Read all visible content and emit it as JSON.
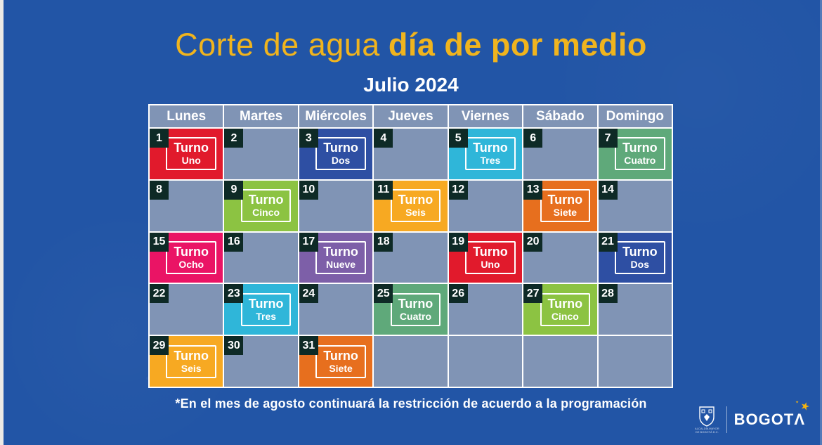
{
  "title": {
    "regular": "Corte de agua",
    "bold": "día de por medio"
  },
  "month": "Julio 2024",
  "calendar": {
    "weekdays": [
      "Lunes",
      "Martes",
      "Miércoles",
      "Jueves",
      "Viernes",
      "Sábado",
      "Domingo"
    ],
    "turno_word": "Turno",
    "cells": [
      {
        "day": "1",
        "turno": {
          "name": "Uno",
          "color": "#e11a2c"
        }
      },
      {
        "day": "2"
      },
      {
        "day": "3",
        "turno": {
          "name": "Dos",
          "color": "#2e4fa3"
        }
      },
      {
        "day": "4"
      },
      {
        "day": "5",
        "turno": {
          "name": "Tres",
          "color": "#2fb6d9"
        }
      },
      {
        "day": "6"
      },
      {
        "day": "7",
        "turno": {
          "name": "Cuatro",
          "color": "#5fa97a"
        }
      },
      {
        "day": "8"
      },
      {
        "day": "9",
        "turno": {
          "name": "Cinco",
          "color": "#8cc342"
        }
      },
      {
        "day": "10"
      },
      {
        "day": "11",
        "turno": {
          "name": "Seis",
          "color": "#f7a922"
        }
      },
      {
        "day": "12"
      },
      {
        "day": "13",
        "turno": {
          "name": "Siete",
          "color": "#e76f1e"
        }
      },
      {
        "day": "14"
      },
      {
        "day": "15",
        "turno": {
          "name": "Ocho",
          "color": "#ea1465"
        }
      },
      {
        "day": "16"
      },
      {
        "day": "17",
        "turno": {
          "name": "Nueve",
          "color": "#7d5fa8"
        }
      },
      {
        "day": "18"
      },
      {
        "day": "19",
        "turno": {
          "name": "Uno",
          "color": "#e11a2c"
        }
      },
      {
        "day": "20"
      },
      {
        "day": "21",
        "turno": {
          "name": "Dos",
          "color": "#2e4fa3"
        }
      },
      {
        "day": "22"
      },
      {
        "day": "23",
        "turno": {
          "name": "Tres",
          "color": "#2fb6d9"
        }
      },
      {
        "day": "24"
      },
      {
        "day": "25",
        "turno": {
          "name": "Cuatro",
          "color": "#5fa97a"
        }
      },
      {
        "day": "26"
      },
      {
        "day": "27",
        "turno": {
          "name": "Cinco",
          "color": "#8cc342"
        }
      },
      {
        "day": "28"
      },
      {
        "day": "29",
        "turno": {
          "name": "Seis",
          "color": "#f7a922"
        }
      },
      {
        "day": "30"
      },
      {
        "day": "31",
        "turno": {
          "name": "Siete",
          "color": "#e76f1e"
        }
      },
      {},
      {},
      {},
      {}
    ]
  },
  "footer_note": "*En el mes de agosto continuará la restricción de acuerdo a la programación",
  "logo": {
    "crest_caption_line1": "ALCALDÍA MAYOR",
    "crest_caption_line2": "DE BOGOTÁ D.C.",
    "wordmark": "BOGOT",
    "wordmark_last_letter": "Λ",
    "star": "★",
    "sparkle": "✦"
  },
  "colors": {
    "background": "#2255a6",
    "title_yellow": "#f0b41e",
    "empty_cell": "#8094b5",
    "day_badge": "#0e2a26",
    "grid_border": "#ffffff",
    "star_yellow": "#f6b40e"
  }
}
